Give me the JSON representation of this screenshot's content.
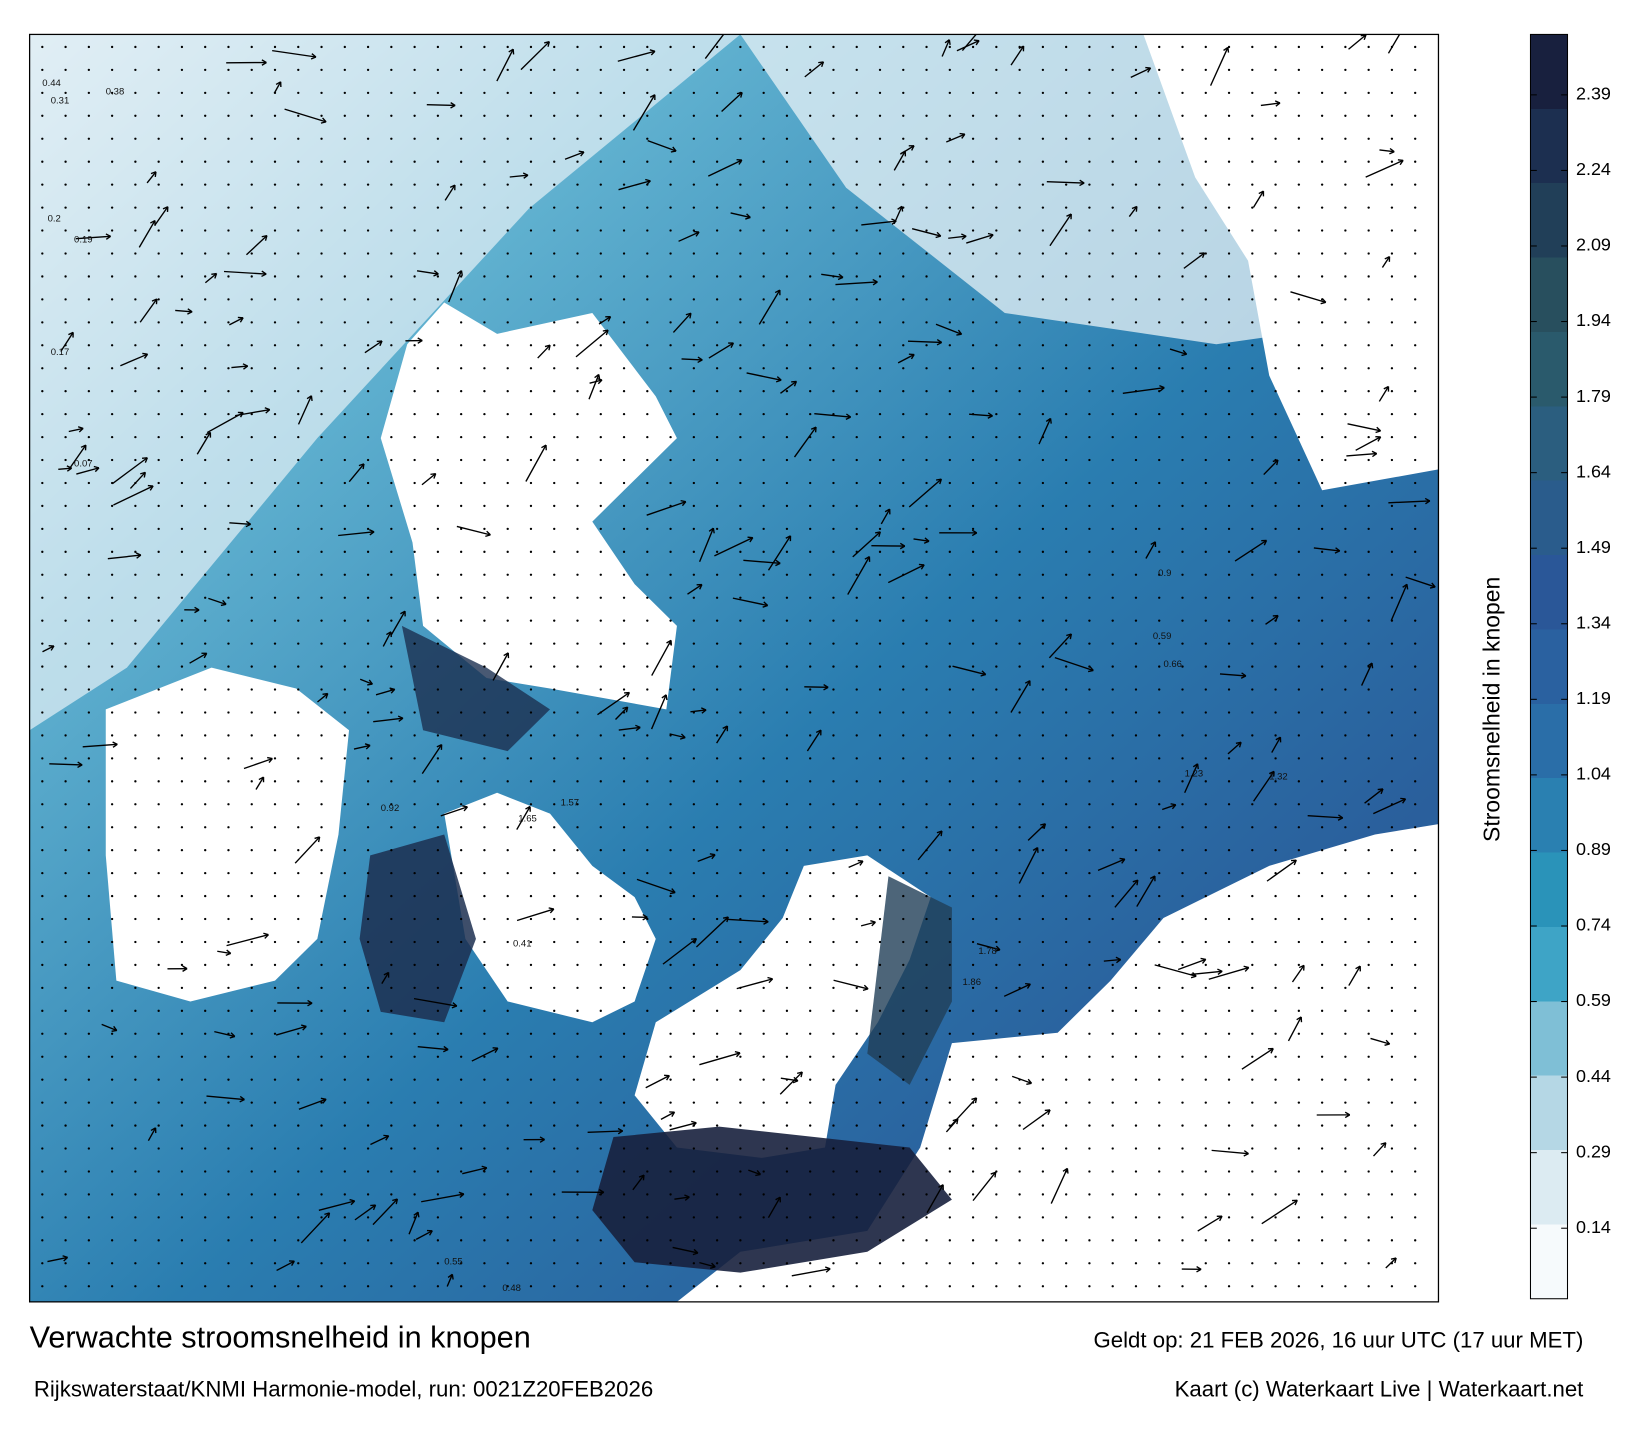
{
  "title": "Verwachte stroomsnelheid in knopen",
  "model_run": "Rijkswaterstaat/KNMI Harmonie-model, run: 0021Z20FEB2026",
  "valid_time": "Geldt op: 21 FEB 2026, 16 uur UTC (17 uur MET)",
  "credit": "Kaart (c) Waterkaart Live | Waterkaart.net",
  "colorbar": {
    "label": "Stroomsnelheid in knopen",
    "ylim": [
      0,
      2.51
    ],
    "yticks": [
      0.14,
      0.29,
      0.44,
      0.59,
      0.74,
      0.89,
      1.04,
      1.19,
      1.34,
      1.49,
      1.64,
      1.79,
      1.94,
      2.09,
      2.24,
      2.39
    ],
    "colors": [
      "#f6fafc",
      "#dcebf2",
      "#b5d7e5",
      "#7fbfd6",
      "#3ea4c6",
      "#2a93b9",
      "#2a80b1",
      "#2a6ea8",
      "#2a61a0",
      "#2a5798",
      "#2a5c8c",
      "#2b5e7f",
      "#2a5a6c",
      "#284f5e",
      "#213f58",
      "#1c2f50",
      "#18203e"
    ]
  },
  "current_labels": [
    "0.44",
    "0.31",
    "0.38",
    "0.2",
    "0.19",
    "0.17",
    "0.07",
    "0.9",
    "1.23",
    "1.32",
    "1.65",
    "1.57",
    "0.92",
    "1.78",
    "1.86",
    "0.66",
    "0.59",
    "0.41",
    "0.55",
    "0.48"
  ]
}
